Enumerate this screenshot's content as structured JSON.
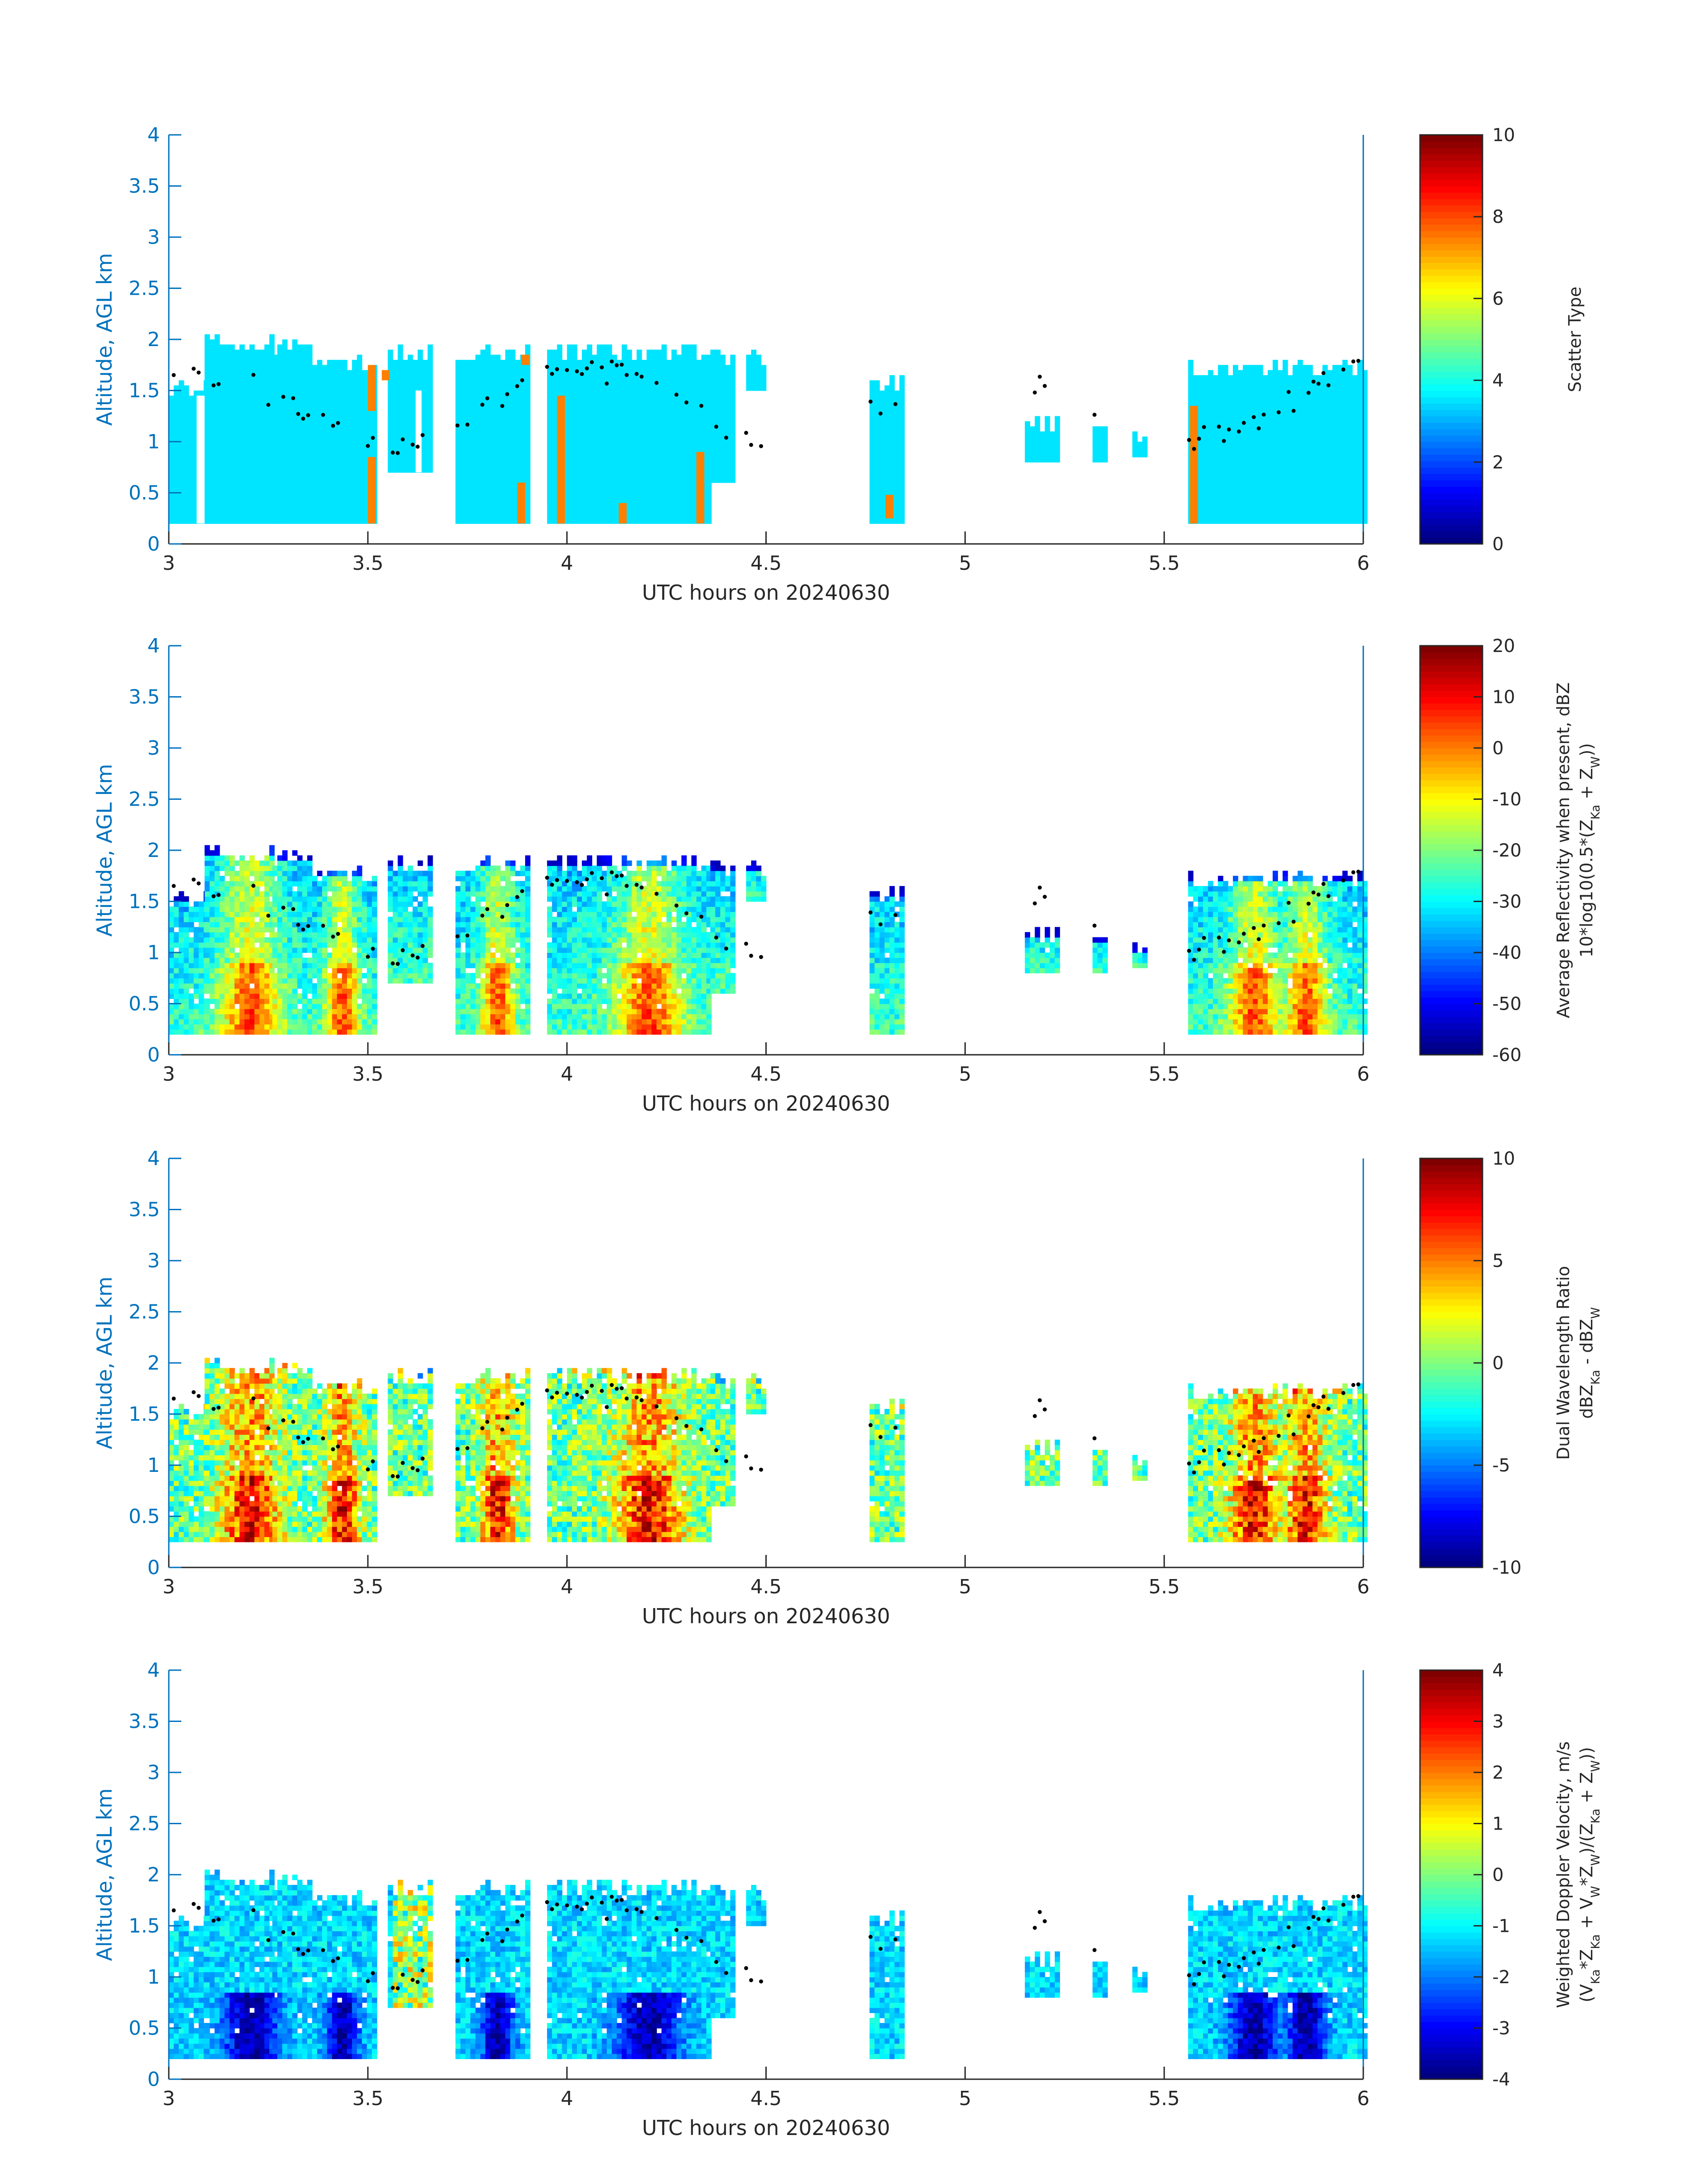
{
  "chart_data": [
    {
      "type": "heatmap",
      "xlabel": "UTC hours on 20240630",
      "ylabel": "Altitude, AGL km",
      "xlim": [
        3,
        6
      ],
      "ylim": [
        0,
        4
      ],
      "xticks": [
        "3",
        "3.5",
        "4",
        "4.5",
        "5",
        "5.5",
        "6"
      ],
      "yticks": [
        "0",
        "0.5",
        "1",
        "1.5",
        "2",
        "2.5",
        "3",
        "3.5",
        "4"
      ],
      "colorbar": {
        "label_lines": [
          "Scatter Type"
        ],
        "clim": [
          0,
          10
        ],
        "ticks": [
          "0",
          "2",
          "4",
          "6",
          "8",
          "10"
        ],
        "colormap": "jet"
      },
      "field": "scatter_type",
      "dominant_value": 3.5,
      "minor_value": 7.5,
      "cloud_top_dots": "black"
    },
    {
      "type": "heatmap",
      "xlabel": "UTC hours on 20240630",
      "ylabel": "Altitude, AGL km",
      "xlim": [
        3,
        6
      ],
      "ylim": [
        0,
        4
      ],
      "xticks": [
        "3",
        "3.5",
        "4",
        "4.5",
        "5",
        "5.5",
        "6"
      ],
      "yticks": [
        "0",
        "0.5",
        "1",
        "1.5",
        "2",
        "2.5",
        "3",
        "3.5",
        "4"
      ],
      "colorbar": {
        "label_lines": [
          "Average Reflectivity when present, dBZ",
          "10*log10(0.5*(Z_Ka + Z_W))"
        ],
        "clim": [
          -60,
          20
        ],
        "ticks": [
          "-60",
          "-50",
          "-40",
          "-30",
          "-20",
          "-10",
          "0",
          "10",
          "20"
        ],
        "colormap": "jet"
      },
      "field": "reflectivity"
    },
    {
      "type": "heatmap",
      "xlabel": "UTC hours on 20240630",
      "ylabel": "Altitude, AGL km",
      "xlim": [
        3,
        6
      ],
      "ylim": [
        0,
        4
      ],
      "xticks": [
        "3",
        "3.5",
        "4",
        "4.5",
        "5",
        "5.5",
        "6"
      ],
      "yticks": [
        "0",
        "0.5",
        "1",
        "1.5",
        "2",
        "2.5",
        "3",
        "3.5",
        "4"
      ],
      "colorbar": {
        "label_lines": [
          "Dual Wavelength Ratio",
          "dBZ_Ka - dBZ_W"
        ],
        "clim": [
          -10,
          10
        ],
        "ticks": [
          "-10",
          "-5",
          "0",
          "5",
          "10"
        ],
        "colormap": "jet"
      },
      "field": "dwr"
    },
    {
      "type": "heatmap",
      "xlabel": "UTC hours on 20240630",
      "ylabel": "Altitude, AGL km",
      "xlim": [
        3,
        6
      ],
      "ylim": [
        0,
        4
      ],
      "xticks": [
        "3",
        "3.5",
        "4",
        "4.5",
        "5",
        "5.5",
        "6"
      ],
      "yticks": [
        "0",
        "0.5",
        "1",
        "1.5",
        "2",
        "2.5",
        "3",
        "3.5",
        "4"
      ],
      "colorbar": {
        "label_lines": [
          "Weighted Doppler Velocity, m/s",
          "(V_Ka*Z_Ka + V_W*Z_W)/(Z_Ka + Z_W))"
        ],
        "clim": [
          -4,
          4
        ],
        "ticks": [
          "-4",
          "-3",
          "-2",
          "-1",
          "0",
          "1",
          "2",
          "3",
          "4"
        ],
        "colormap": "jet"
      },
      "field": "velocity"
    }
  ],
  "cloud_segments": [
    {
      "t0": 3.0,
      "t1": 3.09,
      "bottom": 0.2,
      "top": 1.6
    },
    {
      "t0": 3.09,
      "t1": 3.26,
      "bottom": 0.2,
      "top": 2.05
    },
    {
      "t0": 3.26,
      "t1": 3.36,
      "bottom": 0.2,
      "top": 2.0
    },
    {
      "t0": 3.36,
      "t1": 3.52,
      "bottom": 0.2,
      "top": 1.85
    },
    {
      "t0": 3.55,
      "t1": 3.66,
      "bottom": 0.7,
      "top": 1.95
    },
    {
      "t0": 3.72,
      "t1": 3.9,
      "bottom": 0.2,
      "top": 1.95
    },
    {
      "t0": 3.95,
      "t1": 4.36,
      "bottom": 0.2,
      "top": 1.95
    },
    {
      "t0": 4.36,
      "t1": 4.42,
      "bottom": 0.6,
      "top": 1.9
    },
    {
      "t0": 4.45,
      "t1": 4.49,
      "bottom": 1.5,
      "top": 1.9
    },
    {
      "t0": 4.76,
      "t1": 4.84,
      "bottom": 0.2,
      "top": 1.65
    },
    {
      "t0": 5.15,
      "t1": 5.23,
      "bottom": 0.8,
      "top": 1.25
    },
    {
      "t0": 5.32,
      "t1": 5.35,
      "bottom": 0.8,
      "top": 1.2
    },
    {
      "t0": 5.42,
      "t1": 5.45,
      "bottom": 0.85,
      "top": 1.1
    },
    {
      "t0": 5.56,
      "t1": 6.0,
      "bottom": 0.2,
      "top": 1.8
    }
  ]
}
